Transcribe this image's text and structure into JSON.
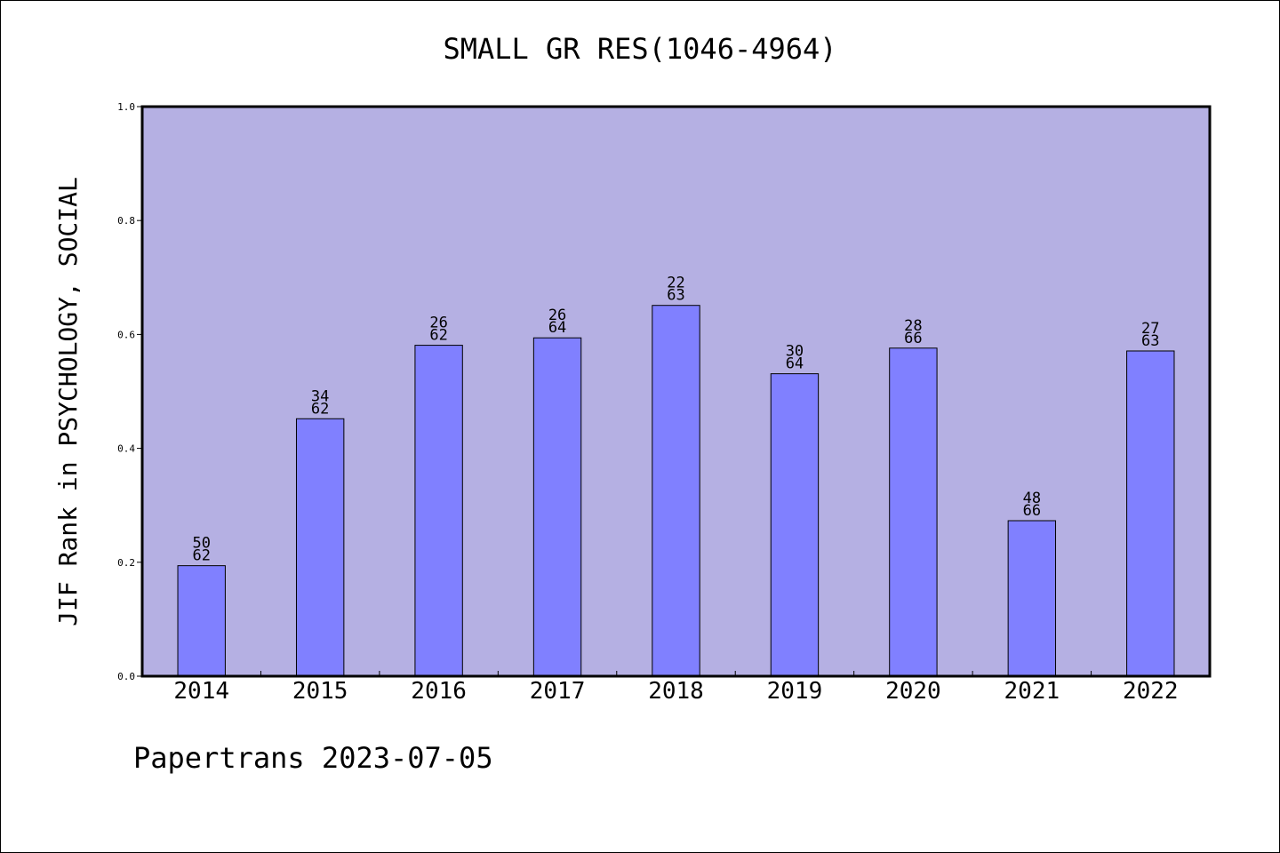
{
  "chart_data": {
    "type": "bar",
    "title": "SMALL GR RES(1046-4964)",
    "xlabel": "",
    "ylabel": "JIF Rank in PSYCHOLOGY, SOCIAL",
    "ylim": [
      0.0,
      1.0
    ],
    "yticks": [
      "0.0",
      "0.2",
      "0.4",
      "0.6",
      "0.8",
      "1.0"
    ],
    "grid": false,
    "categories": [
      "2014",
      "2015",
      "2016",
      "2017",
      "2018",
      "2019",
      "2020",
      "2021",
      "2022"
    ],
    "values": [
      0.194,
      0.452,
      0.581,
      0.594,
      0.651,
      0.531,
      0.576,
      0.273,
      0.571
    ],
    "rank_labels": [
      [
        "50",
        "62"
      ],
      [
        "34",
        "62"
      ],
      [
        "26",
        "62"
      ],
      [
        "26",
        "64"
      ],
      [
        "22",
        "63"
      ],
      [
        "30",
        "64"
      ],
      [
        "28",
        "66"
      ],
      [
        "48",
        "66"
      ],
      [
        "27",
        "63"
      ]
    ],
    "colors": {
      "plot_background": "#b5b0e3",
      "bar_fill": "#8080ff",
      "axis": "#000000"
    }
  },
  "footer": "Papertrans 2023-07-05"
}
